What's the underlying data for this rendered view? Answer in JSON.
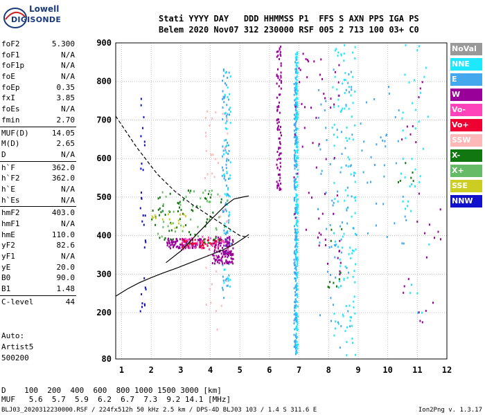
{
  "logo": {
    "line1": "Lowell",
    "line2": "DIGISONDE"
  },
  "header": {
    "row1": "Stati YYYY DAY   DDD HHMMSS P1  FFS S AXN PPS IGA PS",
    "row2": "Belem 2020 Nov07 312 230000 RSF 005 2 713 100 03+ C0"
  },
  "params": {
    "group1": [
      {
        "label": "foF2",
        "value": "5.300"
      },
      {
        "label": "foF1",
        "value": "N/A"
      },
      {
        "label": "foF1p",
        "value": "N/A"
      },
      {
        "label": "foE",
        "value": "N/A"
      },
      {
        "label": "foEp",
        "value": "0.35"
      },
      {
        "label": "fxI",
        "value": "3.85"
      },
      {
        "label": "foEs",
        "value": "N/A"
      },
      {
        "label": "fmin",
        "value": "2.70"
      }
    ],
    "group2": [
      {
        "label": "MUF(D)",
        "value": "14.05"
      },
      {
        "label": "M(D)",
        "value": "2.65"
      },
      {
        "label": "D",
        "value": "N/A"
      }
    ],
    "group3": [
      {
        "label": "h`F",
        "value": "362.0"
      },
      {
        "label": "h`F2",
        "value": "362.0"
      },
      {
        "label": "h`E",
        "value": "N/A"
      },
      {
        "label": "h`Es",
        "value": "N/A"
      }
    ],
    "group4": [
      {
        "label": "hmF2",
        "value": "403.0"
      },
      {
        "label": "hmF1",
        "value": "N/A"
      },
      {
        "label": "hmE",
        "value": "110.0"
      },
      {
        "label": "yF2",
        "value": "82.6"
      },
      {
        "label": "yF1",
        "value": "N/A"
      },
      {
        "label": "yE",
        "value": "20.0"
      },
      {
        "label": "B0",
        "value": "90.0"
      },
      {
        "label": "B1",
        "value": "1.48"
      }
    ],
    "group5": [
      {
        "label": "C-level",
        "value": "44"
      }
    ]
  },
  "auto": {
    "line1": "Auto:",
    "line2": "Artist5",
    "line3": "500200"
  },
  "legend": [
    {
      "label": "NoVal",
      "color": "#999999"
    },
    {
      "label": "NNE",
      "color": "#1ee8ff"
    },
    {
      "label": "E",
      "color": "#43a8ee"
    },
    {
      "label": "W",
      "color": "#990099"
    },
    {
      "label": "Vo-",
      "color": "#ff44bb"
    },
    {
      "label": "Vo+",
      "color": "#ee0033"
    },
    {
      "label": "SSW",
      "color": "#ffb8b8"
    },
    {
      "label": "X-",
      "color": "#117711"
    },
    {
      "label": "X+",
      "color": "#66bb66"
    },
    {
      "label": "SSE",
      "color": "#cccc22"
    },
    {
      "label": "NNW",
      "color": "#1111cc"
    }
  ],
  "footer": {
    "row1": "D    100  200  400  600  800 1000 1500 3000 [km]",
    "row2": "MUF   5.6  5.7  5.9  6.2  6.7  7.3  9.2 14.1 [MHz]",
    "file": "BLJ03_2020312230000.RSF / 224fx512h 50 kHz 2.5 km / DPS-4D BLJ03 103 / 1.4 S 311.6 E",
    "version": "Ion2Png v. 1.3.17"
  },
  "chart_data": {
    "type": "scatter",
    "x_ticks": [
      "1",
      "2",
      "3",
      "4",
      "5",
      "6",
      "7",
      "8",
      "9",
      "10",
      "11",
      "12"
    ],
    "y_ticks": [
      "80",
      "200",
      "300",
      "400",
      "500",
      "600",
      "700",
      "800",
      "900"
    ],
    "xlim": [
      0.8,
      12.0
    ],
    "ylim": [
      80,
      900
    ],
    "grid": true,
    "legend_position": "right",
    "traces": [
      {
        "style": "solid",
        "points": [
          [
            0.8,
            243
          ],
          [
            1.2,
            262
          ],
          [
            1.6,
            278
          ],
          [
            2.0,
            291
          ],
          [
            2.4,
            303
          ],
          [
            2.8,
            314
          ],
          [
            3.2,
            326
          ],
          [
            3.6,
            338
          ],
          [
            4.0,
            350
          ],
          [
            4.4,
            362
          ],
          [
            4.8,
            377
          ],
          [
            5.1,
            392
          ],
          [
            5.3,
            403
          ]
        ]
      },
      {
        "style": "solid",
        "points": [
          [
            2.5,
            330
          ],
          [
            3.0,
            360
          ],
          [
            3.5,
            400
          ],
          [
            4.0,
            440
          ],
          [
            4.5,
            478
          ],
          [
            4.8,
            495
          ],
          [
            5.1,
            500
          ],
          [
            5.3,
            503
          ]
        ]
      },
      {
        "style": "dashed",
        "points": [
          [
            0.8,
            710
          ],
          [
            1.5,
            630
          ],
          [
            2.2,
            560
          ],
          [
            2.8,
            515
          ],
          [
            3.4,
            480
          ],
          [
            4.0,
            450
          ],
          [
            4.6,
            420
          ],
          [
            5.0,
            400
          ],
          [
            5.3,
            395
          ]
        ]
      }
    ],
    "echo_regions": [
      {
        "color": "#1ee8ff",
        "x": 6.9,
        "y": [
          95,
          880
        ],
        "n": 260,
        "w": 0.04
      },
      {
        "color": "#43a8ee",
        "x": 6.85,
        "y": [
          95,
          860
        ],
        "n": 180,
        "w": 0.04
      },
      {
        "color": "#43a8ee",
        "x": 4.5,
        "y": [
          240,
          850
        ],
        "n": 90,
        "w": 0.12
      },
      {
        "color": "#1ee8ff",
        "x": 4.55,
        "y": [
          240,
          850
        ],
        "n": 50,
        "w": 0.12
      },
      {
        "color": "#990099",
        "x": 6.3,
        "y": [
          520,
          900
        ],
        "n": 90,
        "w": 0.08
      },
      {
        "color": "#990099",
        "x": 4.4,
        "y": [
          330,
          400
        ],
        "n": 140,
        "w": 0.35
      },
      {
        "color": "#990099",
        "x": 3.1,
        "y": [
          370,
          395
        ],
        "n": 90,
        "w": 0.6
      },
      {
        "color": "#ee0033",
        "x": 3.7,
        "y": [
          370,
          395
        ],
        "n": 50,
        "w": 0.7
      },
      {
        "color": "#ff44bb",
        "x": 3.8,
        "y": [
          360,
          400
        ],
        "n": 40,
        "w": 0.8
      },
      {
        "color": "#117711",
        "x": 3.2,
        "y": [
          380,
          520
        ],
        "n": 60,
        "w": 1.2
      },
      {
        "color": "#66bb66",
        "x": 3.4,
        "y": [
          400,
          520
        ],
        "n": 40,
        "w": 1.2
      },
      {
        "color": "#cccc22",
        "x": 2.6,
        "y": [
          420,
          460
        ],
        "n": 15,
        "w": 0.6
      },
      {
        "color": "#1111cc",
        "x": 1.7,
        "y": [
          200,
          780
        ],
        "n": 30,
        "w": 0.1
      },
      {
        "color": "#1ee8ff",
        "x": 8.5,
        "y": [
          90,
          900
        ],
        "n": 120,
        "w": 0.4
      },
      {
        "color": "#43a8ee",
        "x": 8.2,
        "y": [
          100,
          850
        ],
        "n": 70,
        "w": 0.6
      },
      {
        "color": "#990099",
        "x": 7.6,
        "y": [
          300,
          880
        ],
        "n": 60,
        "w": 0.8
      },
      {
        "color": "#43a8ee",
        "x": 9.7,
        "y": [
          380,
          800
        ],
        "n": 40,
        "w": 0.9
      },
      {
        "color": "#1ee8ff",
        "x": 10.9,
        "y": [
          200,
          900
        ],
        "n": 40,
        "w": 0.5
      },
      {
        "color": "#990099",
        "x": 11.0,
        "y": [
          170,
          820
        ],
        "n": 25,
        "w": 0.8
      },
      {
        "color": "#ffb8b8",
        "x": 4.2,
        "y": [
          150,
          760
        ],
        "n": 40,
        "w": 0.4
      },
      {
        "color": "#117711",
        "x": 10.6,
        "y": [
          540,
          620
        ],
        "n": 6,
        "w": 0.3
      },
      {
        "color": "#117711",
        "x": 8.2,
        "y": [
          240,
          420
        ],
        "n": 10,
        "w": 0.3
      }
    ]
  }
}
